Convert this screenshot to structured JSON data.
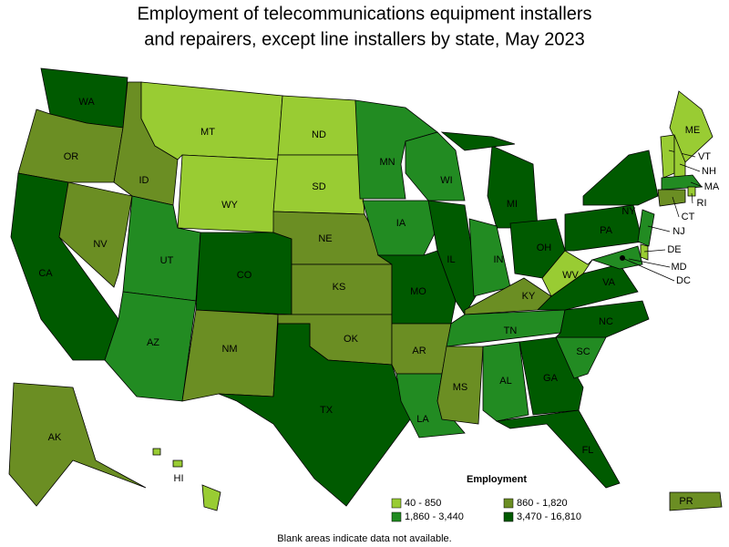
{
  "title": [
    "Employment of telecommunications equipment installers",
    "and repairers, except line installers by state, May 2023"
  ],
  "legend": {
    "title": "Employment",
    "items": [
      {
        "label": "40 - 850",
        "color": "#99cc33"
      },
      {
        "label": "860 - 1,820",
        "color": "#6b8e23"
      },
      {
        "label": "1,860 - 3,440",
        "color": "#228b22"
      },
      {
        "label": "3,470 - 16,810",
        "color": "#005a00"
      }
    ]
  },
  "footnote": "Blank areas indicate data not available.",
  "states": [
    {
      "label": "WA",
      "color": "#005a00"
    },
    {
      "label": "OR",
      "color": "#6b8e23"
    },
    {
      "label": "CA",
      "color": "#005a00"
    },
    {
      "label": "ID",
      "color": "#6b8e23"
    },
    {
      "label": "NV",
      "color": "#6b8e23"
    },
    {
      "label": "MT",
      "color": "#99cc33"
    },
    {
      "label": "WY",
      "color": "#99cc33"
    },
    {
      "label": "UT",
      "color": "#228b22"
    },
    {
      "label": "AZ",
      "color": "#228b22"
    },
    {
      "label": "CO",
      "color": "#005a00"
    },
    {
      "label": "NM",
      "color": "#6b8e23"
    },
    {
      "label": "ND",
      "color": "#99cc33"
    },
    {
      "label": "SD",
      "color": "#99cc33"
    },
    {
      "label": "NE",
      "color": "#6b8e23"
    },
    {
      "label": "KS",
      "color": "#6b8e23"
    },
    {
      "label": "OK",
      "color": "#6b8e23"
    },
    {
      "label": "TX",
      "color": "#005a00"
    },
    {
      "label": "MN",
      "color": "#228b22"
    },
    {
      "label": "IA",
      "color": "#228b22"
    },
    {
      "label": "MO",
      "color": "#005a00"
    },
    {
      "label": "AR",
      "color": "#6b8e23"
    },
    {
      "label": "LA",
      "color": "#228b22"
    },
    {
      "label": "WI",
      "color": "#228b22"
    },
    {
      "label": "IL",
      "color": "#005a00"
    },
    {
      "label": "MI",
      "color": "#005a00"
    },
    {
      "label": "IN",
      "color": "#228b22"
    },
    {
      "label": "OH",
      "color": "#005a00"
    },
    {
      "label": "KY",
      "color": "#6b8e23"
    },
    {
      "label": "TN",
      "color": "#228b22"
    },
    {
      "label": "MS",
      "color": "#6b8e23"
    },
    {
      "label": "AL",
      "color": "#228b22"
    },
    {
      "label": "GA",
      "color": "#005a00"
    },
    {
      "label": "FL",
      "color": "#005a00"
    },
    {
      "label": "SC",
      "color": "#228b22"
    },
    {
      "label": "NC",
      "color": "#005a00"
    },
    {
      "label": "VA",
      "color": "#005a00"
    },
    {
      "label": "WV",
      "color": "#99cc33"
    },
    {
      "label": "PA",
      "color": "#005a00"
    },
    {
      "label": "NY",
      "color": "#005a00"
    },
    {
      "label": "ME",
      "color": "#99cc33"
    },
    {
      "label": "VT",
      "color": "#99cc33"
    },
    {
      "label": "NH",
      "color": "#99cc33"
    },
    {
      "label": "MA",
      "color": "#228b22"
    },
    {
      "label": "RI",
      "color": "#99cc33"
    },
    {
      "label": "CT",
      "color": "#6b8e23"
    },
    {
      "label": "NJ",
      "color": "#228b22"
    },
    {
      "label": "DE",
      "color": "#99cc33"
    },
    {
      "label": "MD",
      "color": "#228b22"
    },
    {
      "label": "DC",
      "color": "#000000"
    },
    {
      "label": "AK",
      "color": "#6b8e23"
    },
    {
      "label": "HI",
      "color": "#99cc33"
    },
    {
      "label": "PR",
      "color": "#6b8e23"
    }
  ]
}
